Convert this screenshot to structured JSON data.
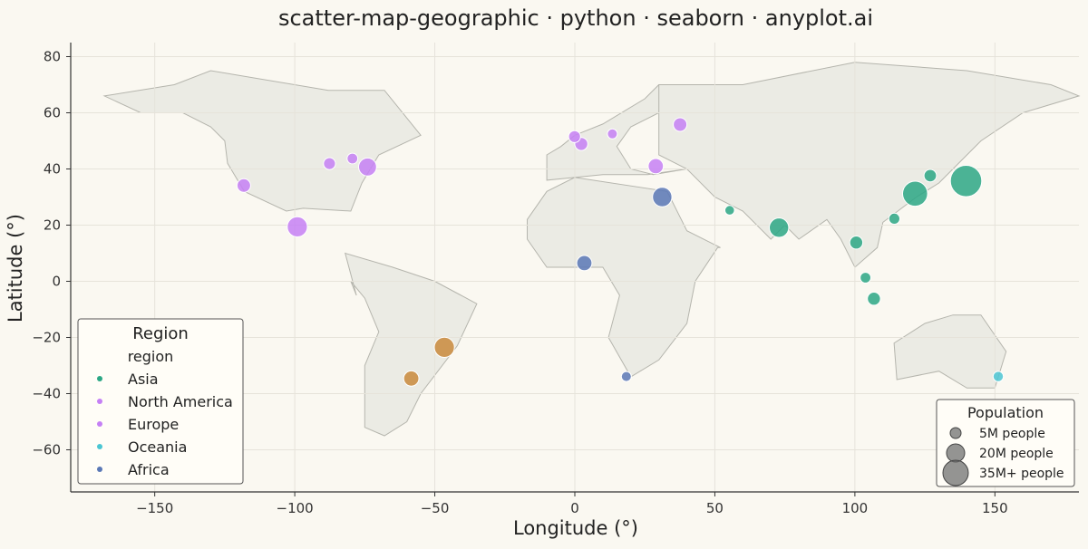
{
  "chart_data": {
    "type": "scatter",
    "title": "scatter-map-geographic · python · seaborn · anyplot.ai",
    "xlabel": "Longitude (°)",
    "ylabel": "Latitude (°)",
    "xlim": [
      -180,
      180
    ],
    "ylim": [
      -75,
      85
    ],
    "xticks": [
      -150,
      -100,
      -50,
      0,
      50,
      100,
      150
    ],
    "xtick_labels": [
      "−150",
      "−100",
      "−50",
      "0",
      "50",
      "100",
      "150"
    ],
    "yticks": [
      -60,
      -40,
      -20,
      0,
      20,
      40,
      60,
      80
    ],
    "ytick_labels": [
      "−60",
      "−40",
      "−20",
      "0",
      "20",
      "40",
      "60",
      "80"
    ],
    "grid": true,
    "basemap": {
      "fill": "#ebebe4",
      "stroke": "#b5b5ad",
      "polygons": [
        [
          [
            -168,
            66
          ],
          [
            -143,
            70
          ],
          [
            -130,
            75
          ],
          [
            -88,
            68
          ],
          [
            -68,
            68
          ],
          [
            -55,
            52
          ],
          [
            -70,
            45
          ],
          [
            -76,
            35
          ],
          [
            -80,
            25
          ],
          [
            -97,
            26
          ],
          [
            -103,
            25
          ],
          [
            -118,
            32
          ],
          [
            -124,
            42
          ],
          [
            -125,
            50
          ],
          [
            -130,
            55
          ],
          [
            -140,
            60
          ],
          [
            -155,
            60
          ],
          [
            -168,
            66
          ]
        ],
        [
          [
            -82,
            10
          ],
          [
            -78,
            -5
          ],
          [
            -80,
            0
          ],
          [
            -75,
            -6
          ],
          [
            -70,
            -18
          ],
          [
            -75,
            -30
          ],
          [
            -75,
            -52
          ],
          [
            -68,
            -55
          ],
          [
            -60,
            -50
          ],
          [
            -55,
            -40
          ],
          [
            -42,
            -23
          ],
          [
            -35,
            -8
          ],
          [
            -50,
            0
          ],
          [
            -65,
            5
          ],
          [
            -82,
            10
          ]
        ],
        [
          [
            -17,
            22
          ],
          [
            -17,
            15
          ],
          [
            -10,
            5
          ],
          [
            10,
            5
          ],
          [
            16,
            -5
          ],
          [
            12,
            -20
          ],
          [
            20,
            -34
          ],
          [
            30,
            -28
          ],
          [
            40,
            -15
          ],
          [
            43,
            0
          ],
          [
            51,
            12
          ],
          [
            52,
            12
          ],
          [
            40,
            18
          ],
          [
            33,
            32
          ],
          [
            0,
            37
          ],
          [
            -10,
            32
          ],
          [
            -17,
            22
          ]
        ],
        [
          [
            -10,
            36
          ],
          [
            -10,
            45
          ],
          [
            -5,
            48
          ],
          [
            0,
            52
          ],
          [
            10,
            56
          ],
          [
            25,
            65
          ],
          [
            30,
            70
          ],
          [
            40,
            70
          ],
          [
            30,
            60
          ],
          [
            20,
            55
          ],
          [
            15,
            48
          ],
          [
            20,
            40
          ],
          [
            28,
            38
          ],
          [
            40,
            40
          ],
          [
            26,
            38
          ],
          [
            10,
            38
          ],
          [
            -10,
            36
          ]
        ],
        [
          [
            30,
            70
          ],
          [
            60,
            70
          ],
          [
            100,
            78
          ],
          [
            140,
            75
          ],
          [
            170,
            70
          ],
          [
            180,
            66
          ],
          [
            160,
            60
          ],
          [
            145,
            50
          ],
          [
            130,
            35
          ],
          [
            122,
            30
          ],
          [
            110,
            21
          ],
          [
            108,
            12
          ],
          [
            100,
            5
          ],
          [
            95,
            15
          ],
          [
            90,
            22
          ],
          [
            80,
            15
          ],
          [
            75,
            20
          ],
          [
            70,
            15
          ],
          [
            60,
            25
          ],
          [
            50,
            30
          ],
          [
            40,
            40
          ],
          [
            30,
            45
          ],
          [
            30,
            70
          ]
        ],
        [
          [
            114,
            -22
          ],
          [
            115,
            -35
          ],
          [
            130,
            -32
          ],
          [
            140,
            -38
          ],
          [
            150,
            -38
          ],
          [
            154,
            -25
          ],
          [
            145,
            -12
          ],
          [
            135,
            -12
          ],
          [
            125,
            -15
          ],
          [
            114,
            -22
          ]
        ]
      ]
    },
    "series": [
      {
        "name": "Asia",
        "color": "#2ba785",
        "points": [
          {
            "x": 139.7,
            "y": 35.7,
            "pop": 37
          },
          {
            "x": 121.5,
            "y": 31.2,
            "pop": 28
          },
          {
            "x": 72.9,
            "y": 19.1,
            "pop": 21
          },
          {
            "x": 126.9,
            "y": 37.6,
            "pop": 10
          },
          {
            "x": 114.1,
            "y": 22.3,
            "pop": 7
          },
          {
            "x": 100.5,
            "y": 13.8,
            "pop": 11
          },
          {
            "x": 103.8,
            "y": 1.3,
            "pop": 6
          },
          {
            "x": 106.8,
            "y": -6.2,
            "pop": 11
          },
          {
            "x": 55.3,
            "y": 25.3,
            "pop": 3
          }
        ]
      },
      {
        "name": "North America",
        "color": "#c580f5",
        "points": [
          {
            "x": -99.1,
            "y": 19.4,
            "pop": 22
          },
          {
            "x": -74.0,
            "y": 40.7,
            "pop": 19
          },
          {
            "x": -118.2,
            "y": 34.1,
            "pop": 12
          },
          {
            "x": -87.6,
            "y": 41.9,
            "pop": 9
          },
          {
            "x": -79.4,
            "y": 43.7,
            "pop": 6
          }
        ]
      },
      {
        "name": "Europe",
        "color": "#c580f5",
        "points": [
          {
            "x": -0.1,
            "y": 51.5,
            "pop": 9
          },
          {
            "x": 2.3,
            "y": 48.9,
            "pop": 11
          },
          {
            "x": 13.4,
            "y": 52.5,
            "pop": 4
          },
          {
            "x": 28.9,
            "y": 41.0,
            "pop": 15
          },
          {
            "x": 37.6,
            "y": 55.8,
            "pop": 12
          }
        ]
      },
      {
        "name": "Oceania",
        "color": "#4bc6d3",
        "points": [
          {
            "x": 151.2,
            "y": -33.9,
            "pop": 5
          }
        ]
      },
      {
        "name": "Africa",
        "color": "#5a78b6",
        "points": [
          {
            "x": 31.2,
            "y": 30.0,
            "pop": 21
          },
          {
            "x": 3.4,
            "y": 6.5,
            "pop": 15
          },
          {
            "x": 18.4,
            "y": -33.9,
            "pop": 4
          }
        ]
      },
      {
        "color": "#c98a3c",
        "points": [
          {
            "x": -46.6,
            "y": -23.5,
            "pop": 22
          },
          {
            "x": -58.4,
            "y": -34.6,
            "pop": 15
          }
        ]
      }
    ],
    "legend": {
      "title": "Region",
      "subtitle": "region",
      "placement": "lower-left",
      "entries": [
        "Asia",
        "North America",
        "Europe",
        "Oceania",
        "Africa"
      ]
    },
    "size_legend": {
      "title": "Population",
      "placement": "lower-right",
      "entries": [
        {
          "label": "5M people",
          "pop": 5
        },
        {
          "label": "20M people",
          "pop": 20
        },
        {
          "label": "35M+ people",
          "pop": 35
        }
      ]
    }
  }
}
